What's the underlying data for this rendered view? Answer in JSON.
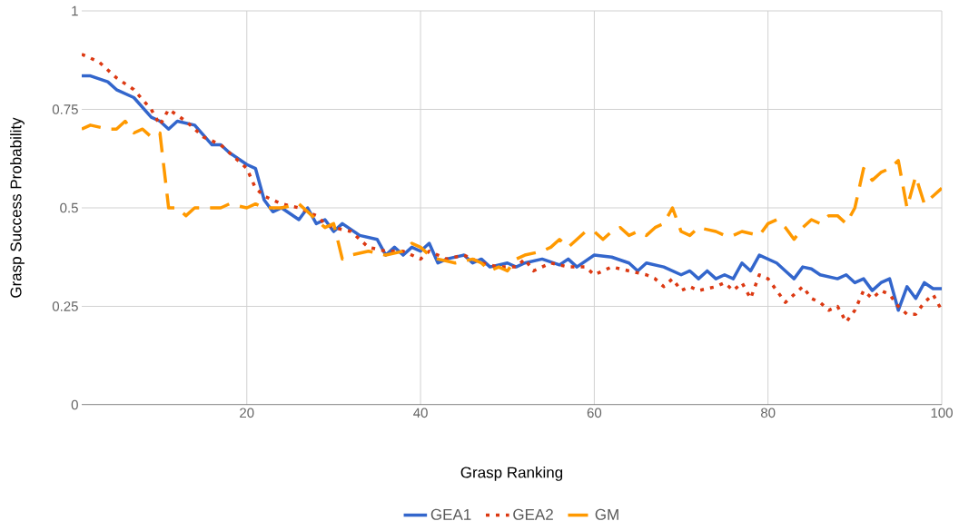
{
  "chart_data": {
    "type": "line",
    "xlabel": "Grasp Ranking",
    "ylabel": "Grasp Success Probability",
    "xlim": [
      1,
      100
    ],
    "xticks": [
      20,
      40,
      60,
      80,
      100
    ],
    "ylim": [
      0,
      1
    ],
    "yticks": [
      0,
      0.25,
      0.5,
      0.75,
      1
    ],
    "grid": true,
    "legend": "bottom",
    "marker": "none",
    "series": [
      {
        "name": "GEA1",
        "color": "#3366cc",
        "line_style": "solid",
        "x": [
          1,
          2,
          4,
          5,
          7,
          9,
          10,
          11,
          12,
          14,
          16,
          17,
          18,
          20,
          21,
          22,
          23,
          24,
          26,
          27,
          28,
          29,
          30,
          31,
          33,
          35,
          36,
          37,
          38,
          39,
          40,
          41,
          42,
          43,
          45,
          46,
          47,
          48,
          50,
          51,
          52,
          54,
          56,
          57,
          58,
          60,
          62,
          64,
          65,
          66,
          68,
          70,
          71,
          72,
          73,
          74,
          75,
          76,
          77,
          78,
          79,
          81,
          82,
          83,
          84,
          85,
          86,
          88,
          89,
          90,
          91,
          92,
          93,
          94,
          95,
          96,
          97,
          98,
          99,
          100
        ],
        "values": [
          0.835,
          0.835,
          0.82,
          0.8,
          0.78,
          0.73,
          0.72,
          0.7,
          0.72,
          0.71,
          0.66,
          0.66,
          0.64,
          0.61,
          0.6,
          0.52,
          0.49,
          0.5,
          0.47,
          0.5,
          0.46,
          0.47,
          0.44,
          0.46,
          0.43,
          0.42,
          0.38,
          0.4,
          0.38,
          0.4,
          0.39,
          0.41,
          0.36,
          0.37,
          0.38,
          0.36,
          0.37,
          0.35,
          0.36,
          0.35,
          0.36,
          0.37,
          0.355,
          0.37,
          0.35,
          0.38,
          0.375,
          0.36,
          0.34,
          0.36,
          0.35,
          0.33,
          0.34,
          0.32,
          0.34,
          0.32,
          0.33,
          0.32,
          0.36,
          0.34,
          0.38,
          0.36,
          0.34,
          0.32,
          0.35,
          0.345,
          0.33,
          0.32,
          0.33,
          0.31,
          0.32,
          0.29,
          0.31,
          0.32,
          0.24,
          0.3,
          0.27,
          0.31,
          0.295,
          0.295
        ]
      },
      {
        "name": "GEA2",
        "color": "#dc3912",
        "line_style": "dotted",
        "x": [
          1,
          3,
          5,
          7,
          9,
          10,
          11,
          13,
          15,
          17,
          19,
          20,
          21,
          22,
          24,
          26,
          28,
          29,
          30,
          32,
          34,
          36,
          38,
          40,
          41,
          43,
          45,
          47,
          49,
          51,
          52,
          53,
          55,
          57,
          59,
          60,
          62,
          64,
          66,
          67,
          68,
          69,
          70,
          71,
          72,
          74,
          75,
          76,
          77,
          78,
          79,
          80,
          81,
          82,
          83,
          84,
          85,
          86,
          87,
          88,
          89,
          90,
          91,
          92,
          93,
          94,
          95,
          96,
          97,
          98,
          99,
          100
        ],
        "values": [
          0.89,
          0.87,
          0.83,
          0.8,
          0.75,
          0.71,
          0.75,
          0.72,
          0.68,
          0.66,
          0.62,
          0.6,
          0.55,
          0.53,
          0.51,
          0.5,
          0.48,
          0.46,
          0.45,
          0.44,
          0.4,
          0.39,
          0.39,
          0.37,
          0.39,
          0.37,
          0.38,
          0.36,
          0.35,
          0.35,
          0.37,
          0.34,
          0.36,
          0.35,
          0.35,
          0.33,
          0.35,
          0.34,
          0.33,
          0.32,
          0.3,
          0.32,
          0.29,
          0.3,
          0.29,
          0.3,
          0.31,
          0.29,
          0.31,
          0.27,
          0.33,
          0.32,
          0.29,
          0.26,
          0.28,
          0.3,
          0.27,
          0.26,
          0.24,
          0.25,
          0.21,
          0.24,
          0.29,
          0.27,
          0.29,
          0.28,
          0.25,
          0.23,
          0.23,
          0.26,
          0.28,
          0.24
        ]
      },
      {
        "name": "GM",
        "color": "#ff9900",
        "line_style": "dashed",
        "x": [
          1,
          2,
          4,
          5,
          6,
          7,
          8,
          9,
          10,
          11,
          12,
          13,
          14,
          16,
          17,
          18,
          20,
          21,
          22,
          24,
          26,
          27,
          28,
          29,
          30,
          31,
          32,
          34,
          36,
          38,
          39,
          40,
          41,
          42,
          44,
          46,
          47,
          48,
          49,
          50,
          51,
          52,
          54,
          55,
          56,
          57,
          58,
          59,
          60,
          61,
          62,
          63,
          64,
          65,
          66,
          67,
          68,
          69,
          70,
          71,
          72,
          73,
          74,
          75,
          76,
          77,
          78,
          79,
          80,
          81,
          82,
          83,
          84,
          85,
          86,
          87,
          88,
          89,
          90,
          91,
          92,
          93,
          94,
          95,
          96,
          97,
          98,
          99,
          100
        ],
        "values": [
          0.7,
          0.71,
          0.7,
          0.7,
          0.72,
          0.69,
          0.7,
          0.68,
          0.69,
          0.5,
          0.5,
          0.48,
          0.5,
          0.5,
          0.5,
          0.51,
          0.5,
          0.51,
          0.5,
          0.5,
          0.51,
          0.49,
          0.47,
          0.45,
          0.46,
          0.37,
          0.38,
          0.39,
          0.38,
          0.39,
          0.41,
          0.4,
          0.38,
          0.37,
          0.36,
          0.37,
          0.36,
          0.34,
          0.35,
          0.34,
          0.37,
          0.38,
          0.39,
          0.4,
          0.42,
          0.4,
          0.42,
          0.44,
          0.44,
          0.42,
          0.44,
          0.45,
          0.43,
          0.44,
          0.43,
          0.45,
          0.46,
          0.5,
          0.44,
          0.43,
          0.45,
          0.445,
          0.44,
          0.43,
          0.43,
          0.44,
          0.435,
          0.43,
          0.46,
          0.47,
          0.45,
          0.42,
          0.45,
          0.47,
          0.46,
          0.48,
          0.48,
          0.46,
          0.5,
          0.6,
          0.57,
          0.59,
          0.6,
          0.62,
          0.5,
          0.58,
          0.51,
          0.53,
          0.55
        ]
      }
    ]
  }
}
